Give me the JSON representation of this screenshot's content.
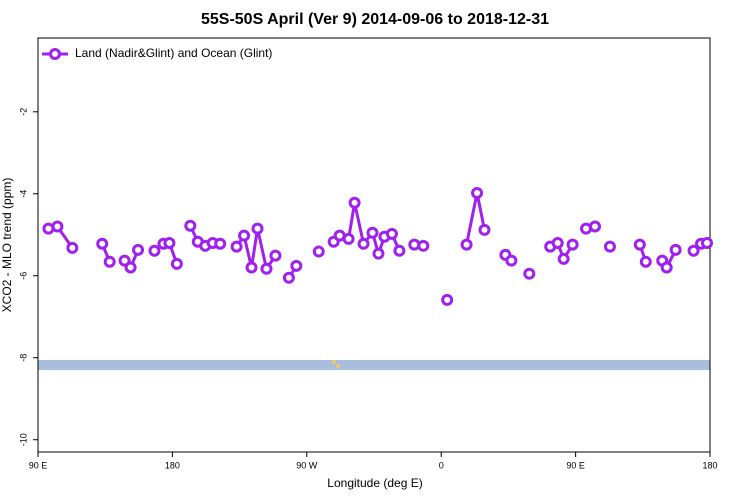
{
  "chart_data": {
    "type": "line",
    "title": "55S-50S April (Ver 9)   2014-09-06 to 2018-12-31",
    "xlabel": "Longitude (deg E)",
    "ylabel": "XCO2 - MLO trend (ppm)",
    "xlim": [
      90,
      540
    ],
    "ylim": [
      -10.3,
      -0.2
    ],
    "xticks": [
      {
        "value": 90,
        "label": "90 E"
      },
      180,
      {
        "value": 270,
        "label": "90 W"
      },
      {
        "value": 360,
        "label": "0"
      },
      {
        "value": 450,
        "label": "90 E"
      },
      {
        "value": 540,
        "label": "180"
      }
    ],
    "yticks": [
      -2,
      -4,
      -6,
      -8,
      -10
    ],
    "legend": "upper left",
    "x": [
      97,
      103,
      113,
      123,
      133,
      138,
      143,
      148,
      152,
      157,
      162,
      168,
      174,
      178,
      183,
      188,
      192,
      197,
      202,
      207,
      212,
      218,
      223,
      228,
      233,
      237,
      243,
      249,
      253,
      258,
      263,
      271,
      278,
      283,
      288,
      292,
      298,
      302,
      308,
      314,
      318,
      322,
      327,
      332,
      337,
      342,
      348,
      356,
      364,
      370,
      377,
      384,
      389,
      396,
      403,
      407,
      413,
      419,
      426,
      433,
      438,
      442,
      448,
      452,
      457,
      463,
      468,
      473,
      483,
      493,
      497,
      502,
      508,
      511,
      517,
      523,
      529,
      534,
      538
    ],
    "series": [
      {
        "name": "Land (Nadir&Glint) and Ocean (Glint)",
        "color": "#a020f0",
        "values": [
          -4.85,
          -4.8,
          -5.32,
          null,
          -5.22,
          -5.66,
          null,
          -5.63,
          -5.8,
          -5.37,
          null,
          -5.39,
          -5.22,
          -5.2,
          -5.71,
          null,
          -4.78,
          -5.17,
          -5.27,
          -5.2,
          -5.22,
          null,
          -5.29,
          -5.02,
          -5.8,
          -4.85,
          -5.83,
          -5.51,
          null,
          -6.05,
          -5.76,
          null,
          -5.41,
          null,
          -5.17,
          -5.02,
          -5.1,
          -4.22,
          -5.22,
          -4.95,
          -5.46,
          -5.05,
          -4.98,
          -5.39,
          null,
          -5.24,
          -5.27,
          null,
          -6.59,
          null,
          -5.24,
          -3.98,
          -4.88,
          null,
          -5.49,
          -5.63,
          null,
          -5.95,
          null,
          -5.29,
          -5.2,
          -5.59,
          -5.24,
          null,
          -4.85,
          -4.8,
          null,
          -5.29,
          null,
          -5.24,
          -5.66,
          null,
          -5.63,
          -5.8,
          -5.37,
          null,
          -5.39,
          -5.22,
          -5.2
        ]
      }
    ]
  }
}
